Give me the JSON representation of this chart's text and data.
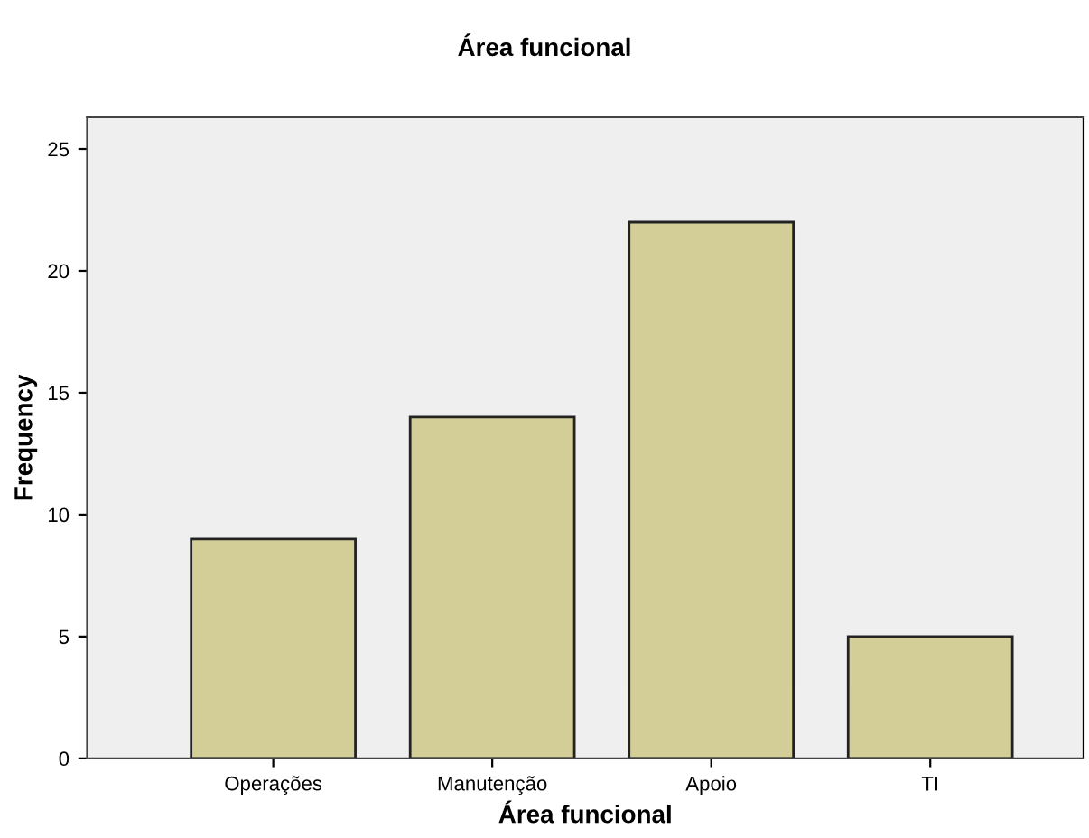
{
  "chart_data": {
    "type": "bar",
    "title": "Área funcional",
    "xlabel": "Área funcional",
    "ylabel": "Frequency",
    "categories": [
      "Operações",
      "Manutenção",
      "Apoio",
      "TI"
    ],
    "values": [
      9,
      14,
      22,
      5
    ],
    "color": "#d3ce97",
    "ylim": [
      0,
      26.3
    ],
    "yticks": [
      0,
      5,
      10,
      15,
      20,
      25
    ],
    "grid": false
  }
}
